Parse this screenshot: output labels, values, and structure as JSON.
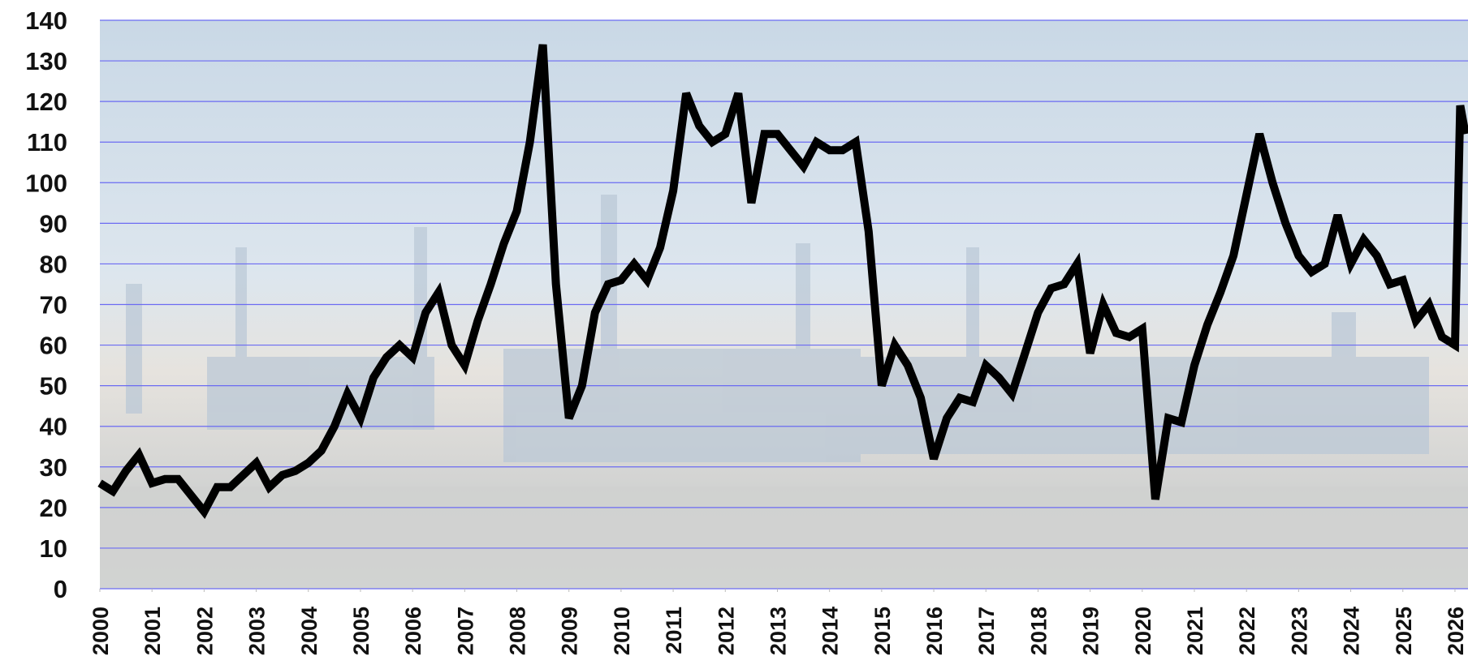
{
  "chart_data": {
    "type": "line",
    "x": [
      2000,
      2000.25,
      2000.5,
      2000.75,
      2001,
      2001.25,
      2001.5,
      2001.75,
      2002,
      2002.25,
      2002.5,
      2002.75,
      2003,
      2003.25,
      2003.5,
      2003.75,
      2004,
      2004.25,
      2004.5,
      2004.75,
      2005,
      2005.25,
      2005.5,
      2005.75,
      2006,
      2006.25,
      2006.5,
      2006.75,
      2007,
      2007.25,
      2007.5,
      2007.75,
      2008,
      2008.25,
      2008.5,
      2008.75,
      2009,
      2009.25,
      2009.5,
      2009.75,
      2010,
      2010.25,
      2010.5,
      2010.75,
      2011,
      2011.25,
      2011.5,
      2011.75,
      2012,
      2012.25,
      2012.5,
      2012.75,
      2013,
      2013.25,
      2013.5,
      2013.75,
      2014,
      2014.25,
      2014.5,
      2014.75,
      2015,
      2015.25,
      2015.5,
      2015.75,
      2016,
      2016.25,
      2016.5,
      2016.75,
      2017,
      2017.25,
      2017.5,
      2017.75,
      2018,
      2018.25,
      2018.5,
      2018.75,
      2019,
      2019.25,
      2019.5,
      2019.75,
      2020,
      2020.25,
      2020.5,
      2020.75,
      2021,
      2021.25,
      2021.5,
      2021.75,
      2022,
      2022.25,
      2022.5,
      2022.75,
      2023,
      2023.25,
      2023.5,
      2023.75,
      2024,
      2024.25,
      2024.5,
      2024.75,
      2025,
      2025.25,
      2025.5,
      2025.75,
      2026,
      2026.1,
      2026.2
    ],
    "series": [
      {
        "color": "#000000",
        "values": [
          26,
          24,
          29,
          33,
          26,
          27,
          27,
          23,
          19,
          25,
          25,
          28,
          31,
          25,
          28,
          29,
          31,
          34,
          40,
          48,
          42,
          52,
          57,
          60,
          57,
          68,
          73,
          60,
          55,
          66,
          75,
          85,
          93,
          110,
          134,
          75,
          42,
          50,
          68,
          75,
          76,
          80,
          76,
          84,
          98,
          122,
          114,
          110,
          112,
          122,
          95,
          112,
          112,
          108,
          104,
          110,
          108,
          108,
          110,
          88,
          50,
          60,
          55,
          47,
          32,
          42,
          47,
          46,
          55,
          52,
          48,
          58,
          68,
          74,
          75,
          80,
          58,
          70,
          63,
          62,
          64,
          22,
          42,
          41,
          55,
          65,
          73,
          82,
          97,
          112,
          100,
          90,
          82,
          78,
          80,
          92,
          80,
          86,
          82,
          75,
          76,
          66,
          70,
          62,
          60,
          119,
          112
        ]
      }
    ],
    "xlim": [
      2000,
      2026.25
    ],
    "xticks": [
      2000,
      2001,
      2002,
      2003,
      2004,
      2005,
      2006,
      2007,
      2008,
      2009,
      2010,
      2011,
      2012,
      2013,
      2014,
      2015,
      2016,
      2017,
      2018,
      2019,
      2020,
      2021,
      2022,
      2023,
      2024,
      2025,
      2026
    ],
    "ylim": [
      0,
      140
    ],
    "yticks": [
      0,
      10,
      20,
      30,
      40,
      50,
      60,
      70,
      80,
      90,
      100,
      110,
      120,
      130,
      140
    ],
    "grid": true
  }
}
